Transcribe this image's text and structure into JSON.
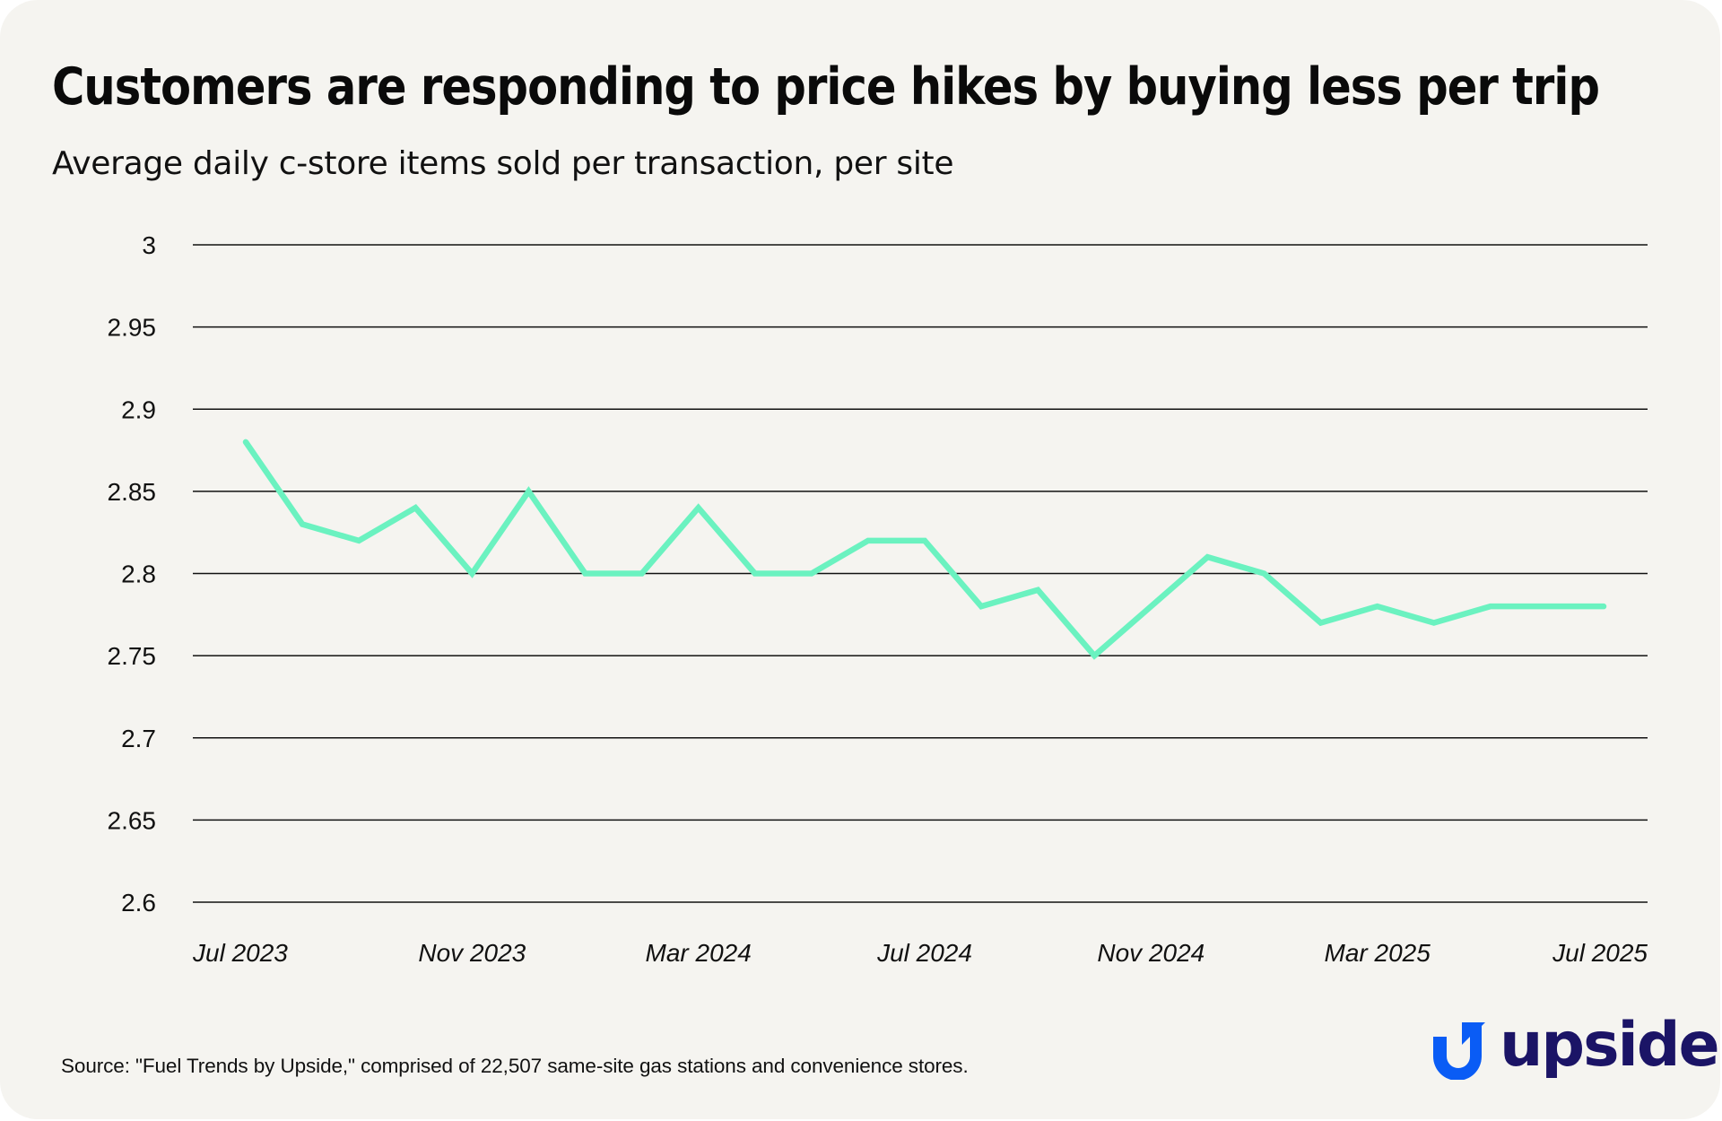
{
  "title": "Customers are responding to price hikes by buying less per trip",
  "subtitle": "Average daily c-store items sold per transaction, per site",
  "source": "Source: \"Fuel Trends by Upside,\" comprised of 22,507 same-site gas stations and convenience stores.",
  "logo": {
    "text": "upside",
    "icon": "upside-arrow-u-icon",
    "mark_color": "#0a5cf5",
    "text_color": "#1b1466"
  },
  "colors": {
    "background": "#f5f4f0",
    "line": "#6bf2c0",
    "gridline": "#111111",
    "text": "#111111"
  },
  "chart_data": {
    "type": "line",
    "title": "Customers are responding to price hikes by buying less per trip",
    "subtitle": "Average daily c-store items sold per transaction, per site",
    "xlabel": "",
    "ylabel": "",
    "x": [
      "Jul 2023",
      "Aug 2023",
      "Sep 2023",
      "Oct 2023",
      "Nov 2023",
      "Dec 2023",
      "Jan 2024",
      "Feb 2024",
      "Mar 2024",
      "Apr 2024",
      "May 2024",
      "Jun 2024",
      "Jul 2024",
      "Aug 2024",
      "Sep 2024",
      "Oct 2024",
      "Nov 2024",
      "Dec 2024",
      "Jan 2025",
      "Feb 2025",
      "Mar 2025",
      "Apr 2025",
      "May 2025",
      "Jun 2025",
      "Jul 2025"
    ],
    "series": [
      {
        "name": "Items per transaction",
        "color": "#6bf2c0",
        "values": [
          2.88,
          2.83,
          2.82,
          2.84,
          2.8,
          2.85,
          2.8,
          2.8,
          2.84,
          2.8,
          2.8,
          2.82,
          2.82,
          2.78,
          2.79,
          2.75,
          2.78,
          2.81,
          2.8,
          2.77,
          2.78,
          2.77,
          2.78,
          2.78,
          2.78
        ]
      }
    ],
    "x_tick_labels": [
      "Jul 2023",
      "Nov 2023",
      "Mar 2024",
      "Jul 2024",
      "Nov 2024",
      "Mar 2025",
      "Jul 2025"
    ],
    "x_tick_indices": [
      0,
      4,
      8,
      12,
      16,
      20,
      24
    ],
    "y_ticks": [
      3,
      2.95,
      2.9,
      2.85,
      2.8,
      2.75,
      2.7,
      2.65,
      2.6
    ],
    "y_tick_labels": [
      "3",
      "2.95",
      "2.9",
      "2.85",
      "2.8",
      "2.75",
      "2.7",
      "2.65",
      "2.6"
    ],
    "ylim": [
      2.6,
      3.0
    ],
    "grid": true,
    "legend": "none"
  }
}
